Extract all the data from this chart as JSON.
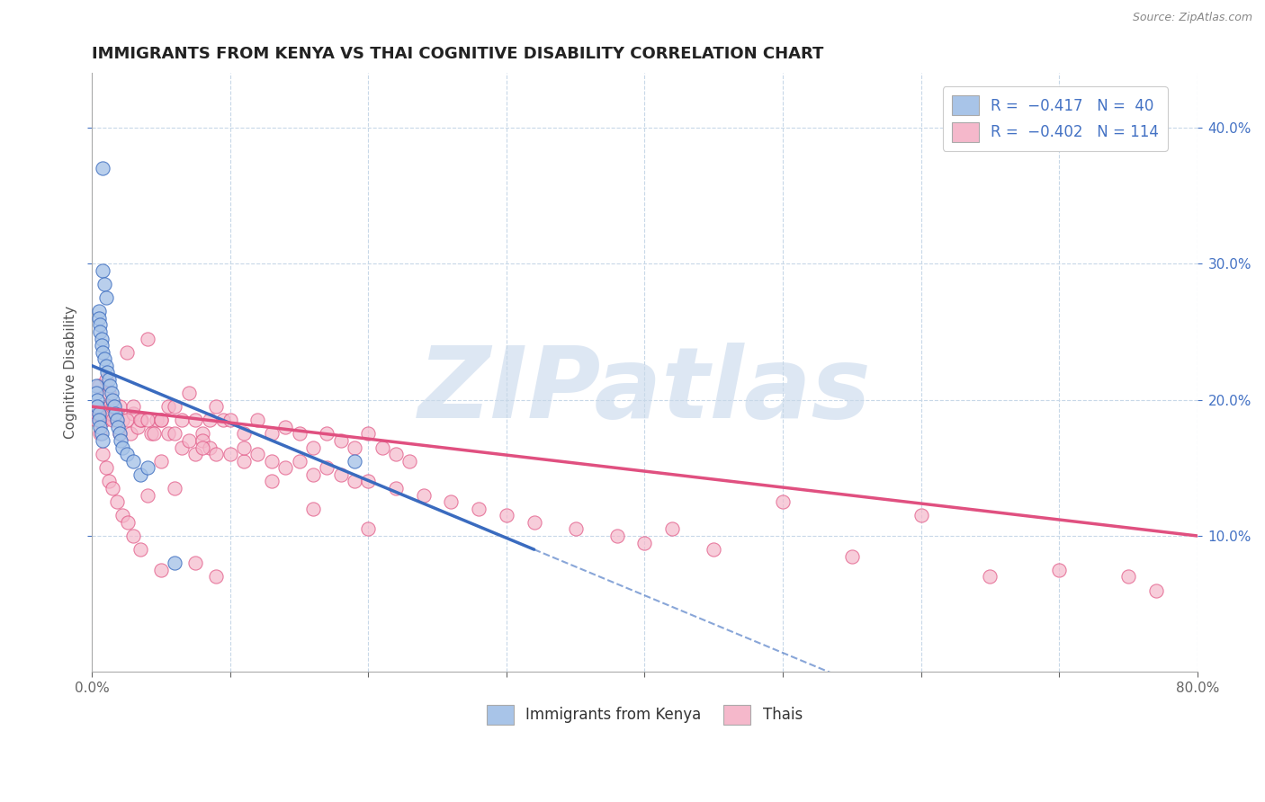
{
  "title": "IMMIGRANTS FROM KENYA VS THAI COGNITIVE DISABILITY CORRELATION CHART",
  "source": "Source: ZipAtlas.com",
  "ylabel": "Cognitive Disability",
  "color_kenya": "#a8c4e8",
  "color_kenya_line": "#3a6bbf",
  "color_thai": "#f5b8cb",
  "color_thai_line": "#e05080",
  "color_text_blue": "#4472c4",
  "background": "#ffffff",
  "grid_color": "#c8d8e8",
  "watermark": "ZIPatlas",
  "xlim": [
    0.0,
    0.8
  ],
  "ylim": [
    0.0,
    0.44
  ],
  "yticks": [
    0.1,
    0.2,
    0.3,
    0.4
  ],
  "xticks": [
    0.0,
    0.1,
    0.2,
    0.3,
    0.4,
    0.5,
    0.6,
    0.7,
    0.8
  ],
  "kenya_x": [
    0.008,
    0.008,
    0.009,
    0.01,
    0.005,
    0.005,
    0.006,
    0.006,
    0.007,
    0.007,
    0.008,
    0.009,
    0.01,
    0.011,
    0.012,
    0.013,
    0.014,
    0.015,
    0.016,
    0.017,
    0.018,
    0.019,
    0.02,
    0.021,
    0.022,
    0.003,
    0.003,
    0.004,
    0.004,
    0.005,
    0.005,
    0.006,
    0.007,
    0.008,
    0.025,
    0.03,
    0.035,
    0.04,
    0.19,
    0.06
  ],
  "kenya_y": [
    0.37,
    0.295,
    0.285,
    0.275,
    0.265,
    0.26,
    0.255,
    0.25,
    0.245,
    0.24,
    0.235,
    0.23,
    0.225,
    0.22,
    0.215,
    0.21,
    0.205,
    0.2,
    0.195,
    0.19,
    0.185,
    0.18,
    0.175,
    0.17,
    0.165,
    0.21,
    0.205,
    0.2,
    0.195,
    0.19,
    0.185,
    0.18,
    0.175,
    0.17,
    0.16,
    0.155,
    0.145,
    0.15,
    0.155,
    0.08
  ],
  "thai_x": [
    0.002,
    0.003,
    0.004,
    0.005,
    0.006,
    0.007,
    0.008,
    0.009,
    0.01,
    0.011,
    0.012,
    0.013,
    0.014,
    0.015,
    0.016,
    0.018,
    0.02,
    0.022,
    0.025,
    0.028,
    0.03,
    0.033,
    0.036,
    0.04,
    0.043,
    0.047,
    0.05,
    0.055,
    0.06,
    0.065,
    0.07,
    0.075,
    0.08,
    0.085,
    0.09,
    0.095,
    0.1,
    0.11,
    0.12,
    0.13,
    0.14,
    0.15,
    0.16,
    0.17,
    0.18,
    0.19,
    0.2,
    0.21,
    0.22,
    0.23,
    0.01,
    0.015,
    0.02,
    0.025,
    0.03,
    0.035,
    0.04,
    0.045,
    0.05,
    0.055,
    0.06,
    0.065,
    0.07,
    0.075,
    0.08,
    0.085,
    0.09,
    0.1,
    0.11,
    0.12,
    0.13,
    0.14,
    0.15,
    0.16,
    0.17,
    0.18,
    0.19,
    0.2,
    0.22,
    0.24,
    0.26,
    0.28,
    0.3,
    0.32,
    0.35,
    0.38,
    0.4,
    0.42,
    0.45,
    0.5,
    0.55,
    0.6,
    0.65,
    0.7,
    0.004,
    0.006,
    0.008,
    0.01,
    0.012,
    0.015,
    0.018,
    0.022,
    0.026,
    0.03,
    0.035,
    0.04,
    0.05,
    0.06,
    0.075,
    0.09,
    0.11,
    0.13,
    0.16,
    0.2,
    0.75,
    0.77,
    0.05,
    0.08
  ],
  "thai_y": [
    0.19,
    0.185,
    0.195,
    0.21,
    0.19,
    0.185,
    0.19,
    0.185,
    0.195,
    0.19,
    0.205,
    0.195,
    0.19,
    0.185,
    0.195,
    0.185,
    0.175,
    0.185,
    0.235,
    0.175,
    0.19,
    0.18,
    0.185,
    0.245,
    0.175,
    0.185,
    0.185,
    0.195,
    0.195,
    0.185,
    0.205,
    0.185,
    0.175,
    0.185,
    0.195,
    0.185,
    0.185,
    0.175,
    0.185,
    0.175,
    0.18,
    0.175,
    0.165,
    0.175,
    0.17,
    0.165,
    0.175,
    0.165,
    0.16,
    0.155,
    0.215,
    0.195,
    0.195,
    0.185,
    0.195,
    0.185,
    0.185,
    0.175,
    0.185,
    0.175,
    0.175,
    0.165,
    0.17,
    0.16,
    0.17,
    0.165,
    0.16,
    0.16,
    0.155,
    0.16,
    0.155,
    0.15,
    0.155,
    0.145,
    0.15,
    0.145,
    0.14,
    0.14,
    0.135,
    0.13,
    0.125,
    0.12,
    0.115,
    0.11,
    0.105,
    0.1,
    0.095,
    0.105,
    0.09,
    0.125,
    0.085,
    0.115,
    0.07,
    0.075,
    0.19,
    0.175,
    0.16,
    0.15,
    0.14,
    0.135,
    0.125,
    0.115,
    0.11,
    0.1,
    0.09,
    0.13,
    0.075,
    0.135,
    0.08,
    0.07,
    0.165,
    0.14,
    0.12,
    0.105,
    0.07,
    0.06,
    0.155,
    0.165
  ],
  "kenya_trend_x0": 0.0,
  "kenya_trend_y0": 0.225,
  "kenya_trend_x1": 0.32,
  "kenya_trend_y1": 0.09,
  "thai_trend_x0": 0.0,
  "thai_trend_y0": 0.195,
  "thai_trend_x1": 0.8,
  "thai_trend_y1": 0.1
}
